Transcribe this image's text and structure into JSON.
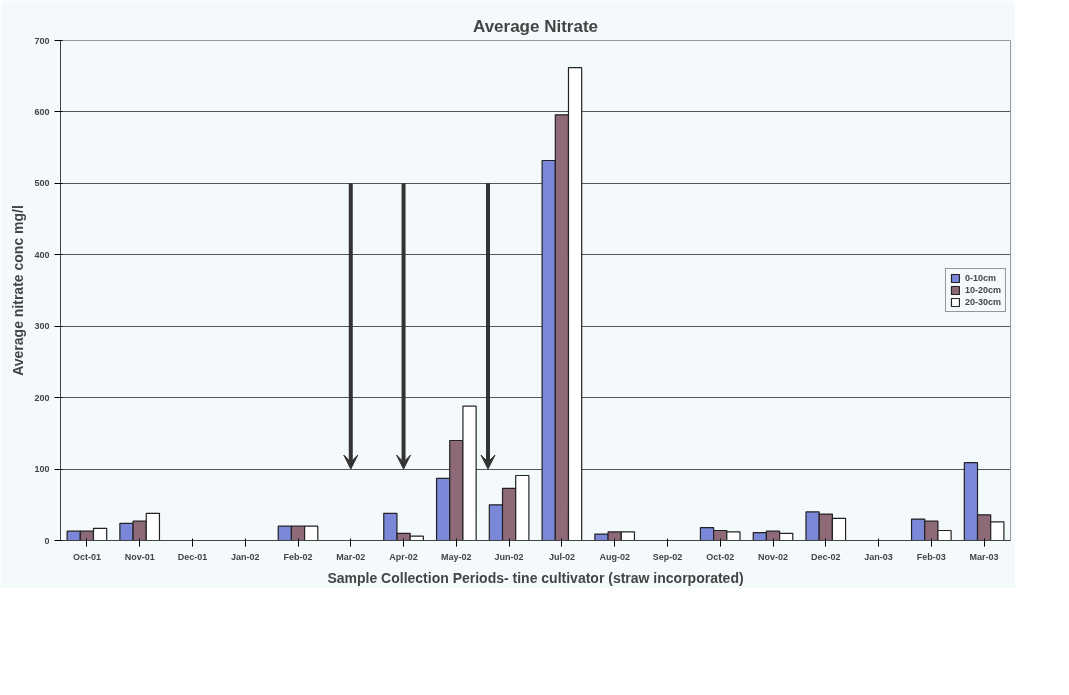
{
  "chart_data": {
    "type": "bar",
    "title": "Average Nitrate",
    "xlabel": "Sample Collection Periods- tine cultivator (straw incorporated)",
    "ylabel": "Average nitrate conc mg/l",
    "categories": [
      "Oct-01",
      "Nov-01",
      "Dec-01",
      "Jan-02",
      "Feb-02",
      "Mar-02",
      "Apr-02",
      "May-02",
      "Jun-02",
      "Jul-02",
      "Aug-02",
      "Sep-02",
      "Oct-02",
      "Nov-02",
      "Dec-02",
      "Jan-03",
      "Feb-03",
      "Mar-03"
    ],
    "series": [
      {
        "name": "0-10cm",
        "color": "#7b87d9",
        "values": [
          13,
          24,
          null,
          null,
          20,
          null,
          38,
          87,
          50,
          532,
          9,
          null,
          18,
          11,
          40,
          null,
          30,
          109
        ]
      },
      {
        "name": "10-20cm",
        "color": "#8e6a78",
        "values": [
          13,
          27,
          null,
          null,
          20,
          null,
          10,
          140,
          73,
          596,
          12,
          null,
          14,
          13,
          37,
          null,
          27,
          36
        ]
      },
      {
        "name": "20-30cm",
        "color": "#ffffff",
        "values": [
          17,
          38,
          null,
          null,
          20,
          null,
          6,
          188,
          91,
          662,
          12,
          null,
          12,
          10,
          31,
          null,
          14,
          26
        ]
      }
    ],
    "ylim": [
      0,
      700
    ],
    "yticks": [
      0,
      100,
      200,
      300,
      400,
      500,
      600,
      700
    ],
    "grid": "y",
    "legend": "right"
  }
}
